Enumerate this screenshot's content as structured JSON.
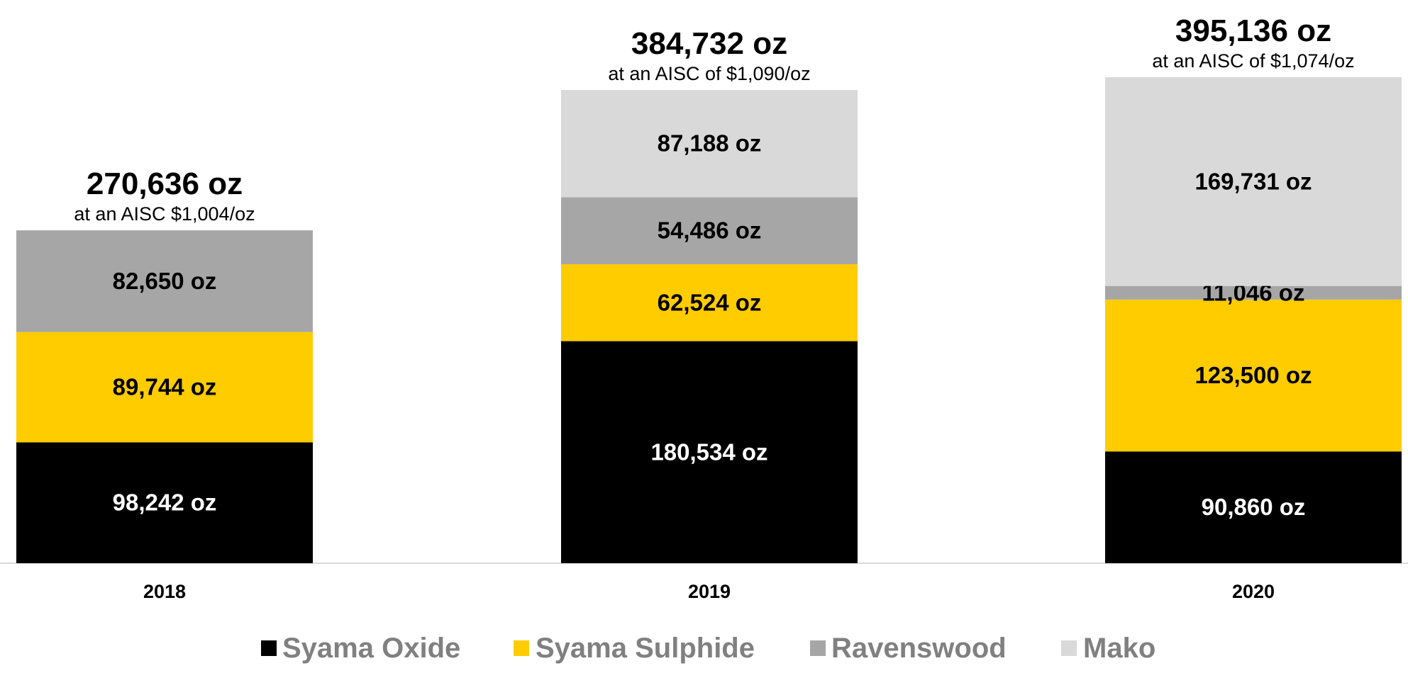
{
  "chart_data": {
    "type": "bar",
    "stacked": true,
    "categories": [
      "2018",
      "2019",
      "2020"
    ],
    "series": [
      {
        "name": "Syama Oxide",
        "color": "#000000",
        "values": [
          98242,
          180534,
          90860
        ],
        "labels": [
          "98,242 oz",
          "180,534 oz",
          "90,860 oz"
        ],
        "label_color": "#ffffff"
      },
      {
        "name": "Syama Sulphide",
        "color": "#ffcc00",
        "values": [
          89744,
          62524,
          123500
        ],
        "labels": [
          "89,744 oz",
          "62,524 oz",
          "123,500 oz"
        ],
        "label_color": "#000000"
      },
      {
        "name": "Ravenswood",
        "color": "#a6a6a6",
        "values": [
          82650,
          54486,
          11046
        ],
        "labels": [
          "82,650 oz",
          "54,486 oz",
          "11,046 oz"
        ],
        "label_color": "#000000"
      },
      {
        "name": "Mako",
        "color": "#d9d9d9",
        "values": [
          0,
          87188,
          169731
        ],
        "labels": [
          "",
          "87,188 oz",
          "169,731 oz"
        ],
        "label_color": "#000000"
      }
    ],
    "totals": {
      "values": [
        270636,
        384732,
        395136
      ],
      "labels": [
        "270,636 oz",
        "384,732 oz",
        "395,136 oz"
      ],
      "aisc_labels": [
        "at an AISC $1,004/oz",
        "at an AISC of $1,090/oz",
        "at an AISC of $1,074/oz"
      ]
    },
    "title": "",
    "xlabel": "",
    "ylabel": "",
    "ylim": [
      0,
      395136
    ],
    "grid": false,
    "legend_position": "bottom",
    "legend_text_color": "#808080",
    "axis_color": "#d9d9d9"
  }
}
